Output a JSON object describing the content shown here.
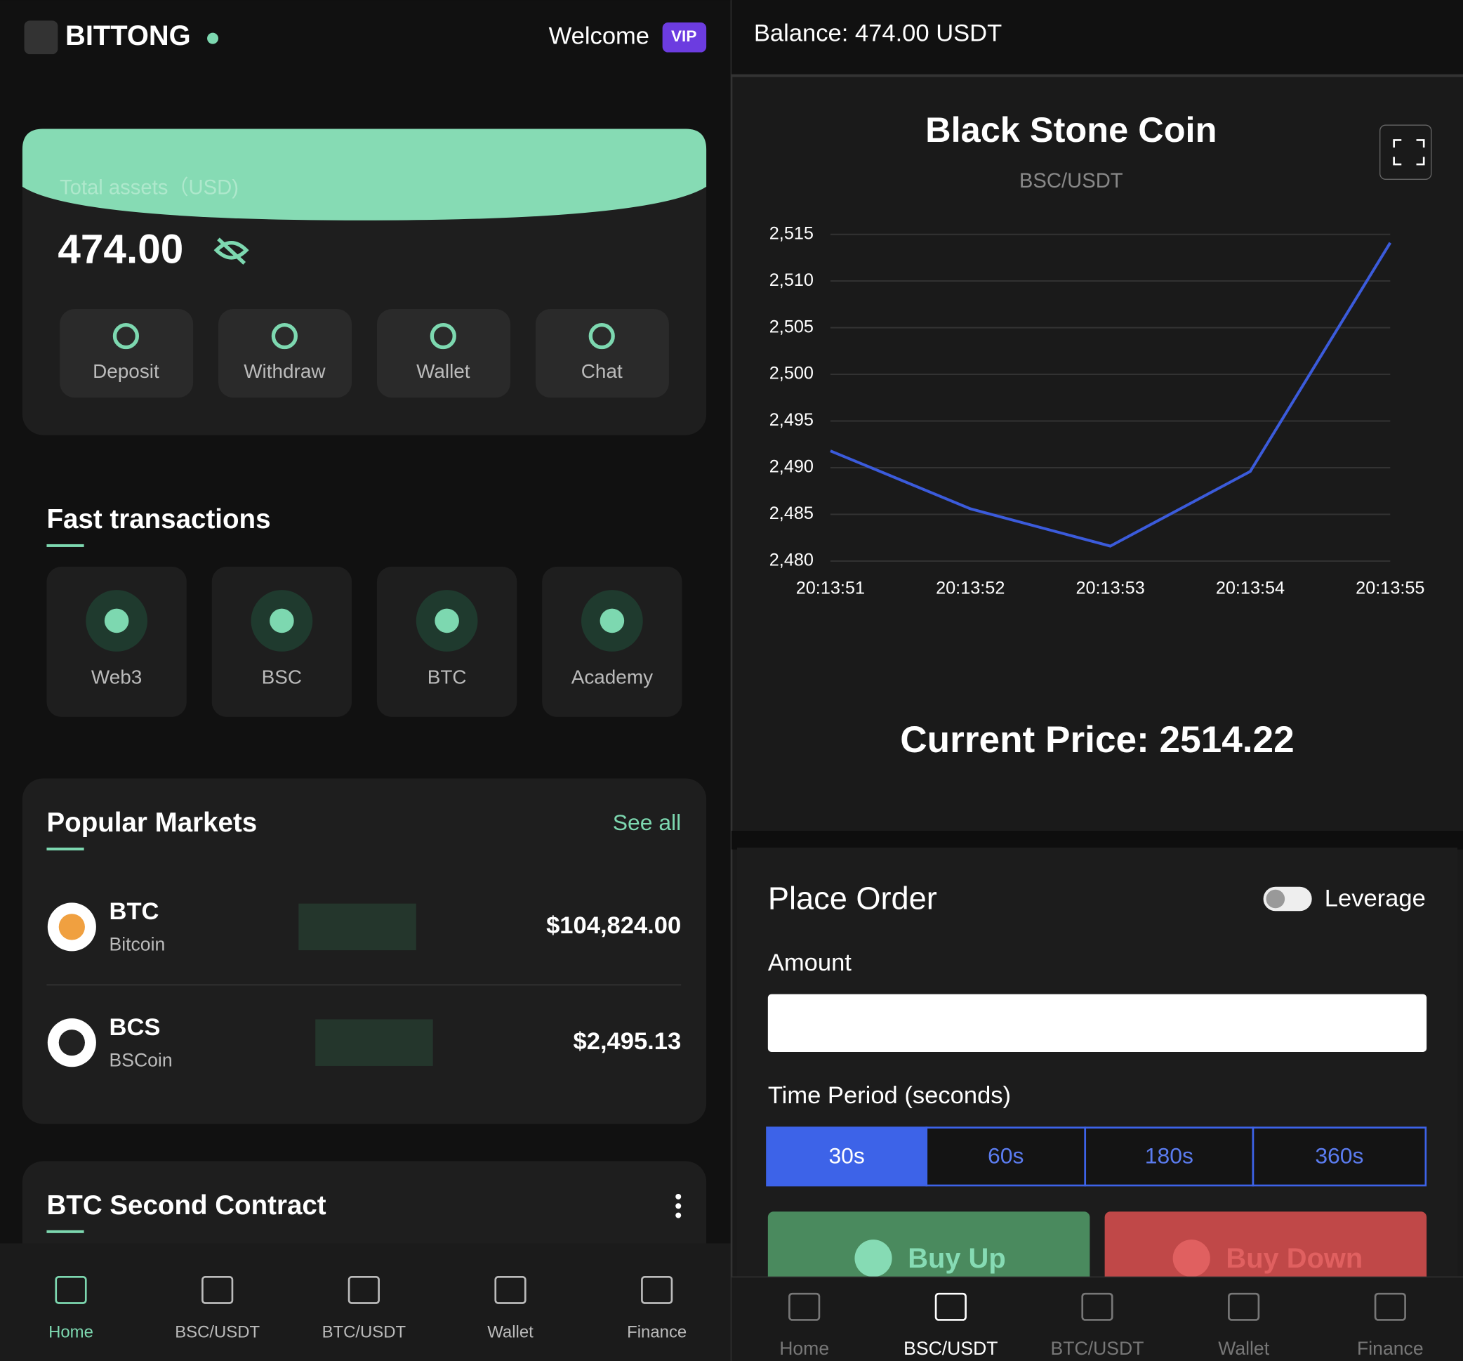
{
  "header": {
    "brand": "BITTONG",
    "welcome": "Welcome",
    "badge": "VIP"
  },
  "assets": {
    "label": "Total assets（USD)",
    "amount": "474.00",
    "actions": [
      "Deposit",
      "Withdraw",
      "Wallet",
      "Chat"
    ]
  },
  "fast_transactions": {
    "title": "Fast transactions",
    "items": [
      "Web3",
      "BSC",
      "BTC",
      "Academy"
    ]
  },
  "popular_markets": {
    "title": "Popular Markets",
    "see_all": "See all",
    "rows": [
      {
        "symbol": "BTC",
        "name": "Bitcoin",
        "price": "$104,824.00"
      },
      {
        "symbol": "BCS",
        "name": "BSCoin",
        "price": "$2,495.13"
      }
    ]
  },
  "contract": {
    "title": "BTC Second Contract"
  },
  "nav_left": {
    "items": [
      "Home",
      "BSC/USDT",
      "BTC/USDT",
      "Wallet",
      "Finance"
    ]
  },
  "balance": "Balance: 474.00 USDT",
  "chart_data": {
    "type": "line",
    "title": "Black Stone Coin",
    "subtitle": "BSC/USDT",
    "categories": [
      "20:13:51",
      "20:13:52",
      "20:13:53",
      "20:13:54",
      "20:13:55"
    ],
    "values": [
      2491.8,
      2485.6,
      2481.6,
      2489.6,
      2514.1
    ],
    "color": "#3b5bdb",
    "ylim": [
      2480,
      2515
    ],
    "yticks": [
      {
        "value": 2480,
        "label": "2,480"
      },
      {
        "value": 2485,
        "label": "2,485"
      },
      {
        "value": 2490,
        "label": "2,490"
      },
      {
        "value": 2495,
        "label": "2,495"
      },
      {
        "value": 2500,
        "label": "2,500"
      },
      {
        "value": 2505,
        "label": "2,505"
      },
      {
        "value": 2510,
        "label": "2,510"
      },
      {
        "value": 2515,
        "label": "2,515"
      }
    ],
    "grid": true
  },
  "current_price": "Current Price: 2514.22",
  "order": {
    "title": "Place Order",
    "leverage": "Leverage",
    "amount_label": "Amount",
    "period_label": "Time Period (seconds)",
    "periods": [
      "30s",
      "60s",
      "180s",
      "360s"
    ],
    "buy_up": "Buy Up",
    "buy_down": "Buy Down"
  },
  "nav_right": {
    "items": [
      "Home",
      "BSC/USDT",
      "BTC/USDT",
      "Wallet",
      "Finance"
    ]
  }
}
